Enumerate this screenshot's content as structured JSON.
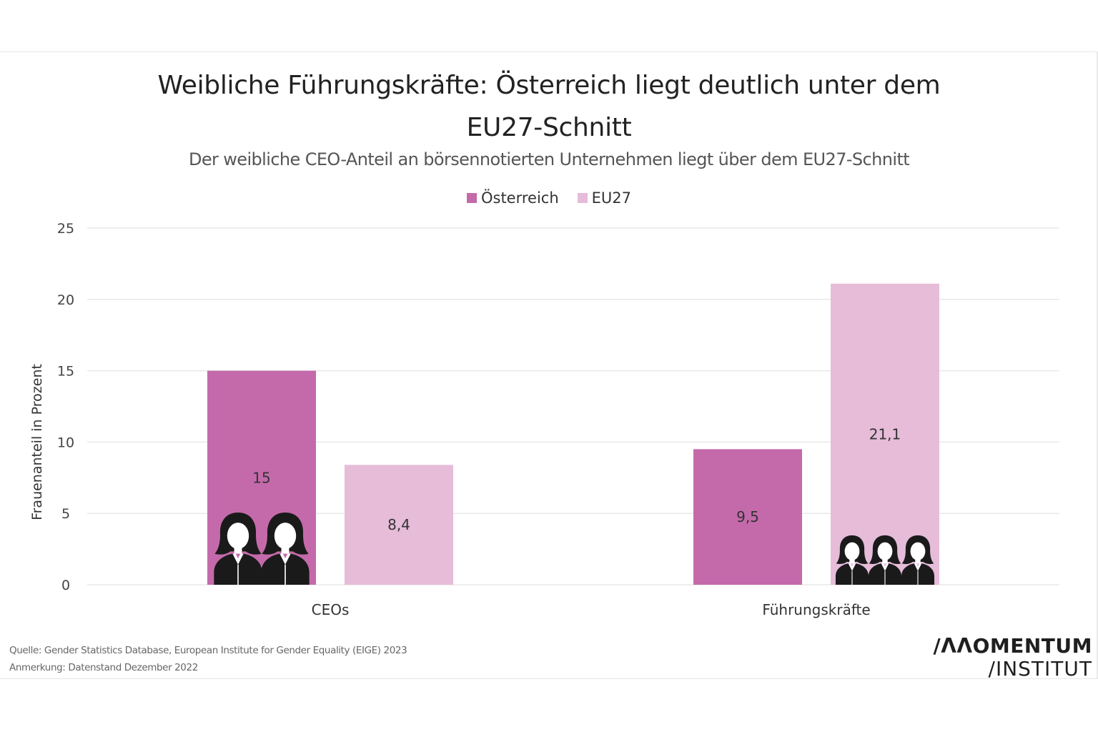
{
  "header": {
    "title_line1": "Weibliche Führungskräfte: Österreich liegt deutlich unter dem",
    "title_line2": "EU27-Schnitt",
    "subtitle": "Der weibliche CEO-Anteil an börsennotierten Unternehmen liegt über dem EU27-Schnitt"
  },
  "footer": {
    "source": "Quelle: Gender Statistics Database, European Institute for Gender Equality (EIGE) 2023",
    "note": "Anmerkung: Datenstand Dezember 2022"
  },
  "logo": {
    "line1": "/ΛΛOMENTUM",
    "line2": "/INSTITUT"
  },
  "colors": {
    "oesterreich": "#c46aaa",
    "eu27": "#e6bcd9",
    "grid": "#e9e9e9",
    "icon": "#1a1a1a"
  },
  "chart_data": {
    "type": "bar",
    "categories": [
      "CEOs",
      "Führungskräfte"
    ],
    "series": [
      {
        "name": "Österreich",
        "values": [
          15,
          9.5
        ],
        "labels": [
          "15",
          "9,5"
        ]
      },
      {
        "name": "EU27",
        "values": [
          8.4,
          21.1
        ],
        "labels": [
          "8,4",
          "21,1"
        ]
      }
    ],
    "ylabel": "Frauenanteil in Prozent",
    "ylim": [
      0,
      25
    ],
    "yticks": [
      0,
      5,
      10,
      15,
      20,
      25
    ],
    "grid": true,
    "legend_position": "top-center",
    "icons": [
      {
        "category": "CEOs",
        "series": "Österreich",
        "count": 2,
        "icon": "businesswoman-icon"
      },
      {
        "category": "Führungskräfte",
        "series": "EU27",
        "count": 3,
        "icon": "businesswoman-icon"
      }
    ]
  }
}
